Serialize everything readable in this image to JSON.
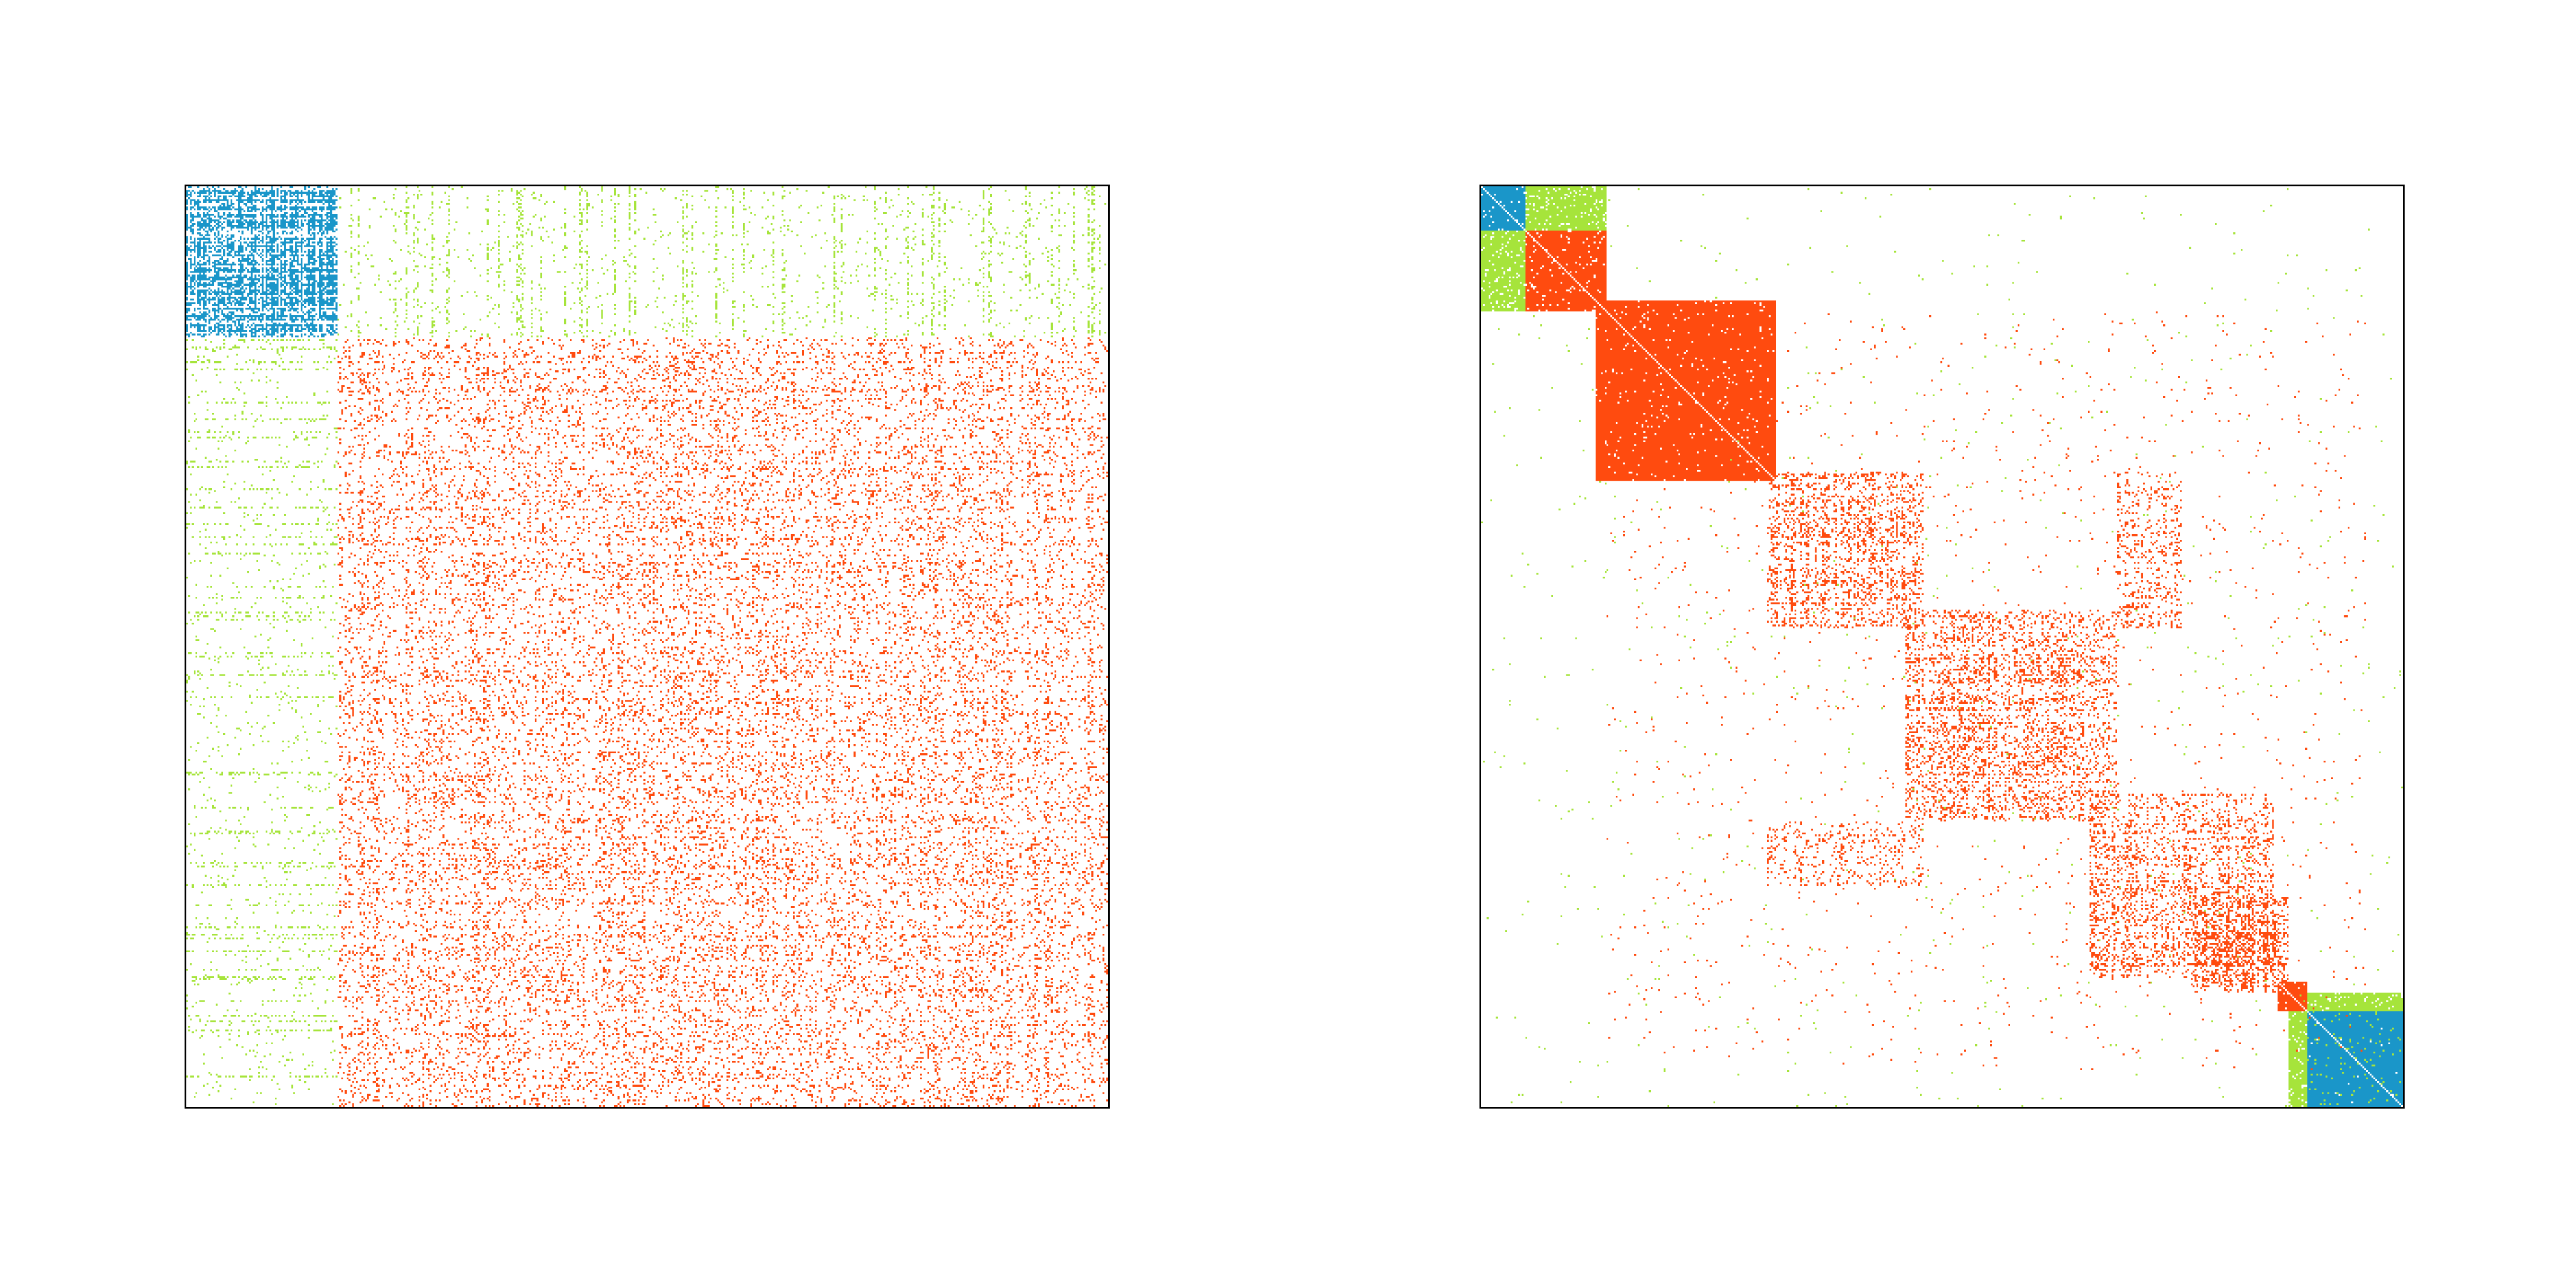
{
  "chart_data": [
    {
      "type": "heatmap",
      "panel": "left",
      "matrix_size": 500,
      "xlim": [
        0,
        500
      ],
      "ylim": [
        0,
        500
      ],
      "title": "",
      "xlabel": "",
      "ylabel": "",
      "grid": false,
      "legend": "none",
      "blocks": [
        {
          "group": "within-blue",
          "rows": [
            0,
            82
          ],
          "cols": [
            0,
            82
          ],
          "density": 0.6,
          "pattern": "lattice"
        },
        {
          "group": "cross-green",
          "rows": [
            0,
            82
          ],
          "cols": [
            82,
            500
          ],
          "density": 0.05,
          "pattern": "stripes"
        },
        {
          "group": "cross-green",
          "rows": [
            82,
            500
          ],
          "cols": [
            0,
            82
          ],
          "density": 0.05,
          "pattern": "stripes"
        },
        {
          "group": "within-red",
          "rows": [
            82,
            500
          ],
          "cols": [
            82,
            500
          ],
          "density": 0.13,
          "pattern": "lattice"
        }
      ]
    },
    {
      "type": "heatmap",
      "panel": "right",
      "matrix_size": 500,
      "xlim": [
        0,
        500
      ],
      "ylim": [
        0,
        500
      ],
      "title": "",
      "xlabel": "",
      "ylabel": "",
      "grid": false,
      "legend": "none",
      "blocks": [
        {
          "group": "within-blue",
          "rows": [
            0,
            24
          ],
          "cols": [
            0,
            24
          ],
          "density": 0.95,
          "pattern": "solid"
        },
        {
          "group": "cross-green",
          "rows": [
            0,
            24
          ],
          "cols": [
            24,
            68
          ],
          "density": 0.9,
          "pattern": "solid"
        },
        {
          "group": "cross-green",
          "rows": [
            24,
            68
          ],
          "cols": [
            0,
            24
          ],
          "density": 0.9,
          "pattern": "solid"
        },
        {
          "group": "within-red",
          "rows": [
            24,
            68
          ],
          "cols": [
            24,
            68
          ],
          "density": 0.95,
          "pattern": "solid"
        },
        {
          "group": "within-red",
          "rows": [
            62,
            160
          ],
          "cols": [
            62,
            160
          ],
          "density": 0.97,
          "pattern": "solid"
        },
        {
          "group": "within-red",
          "rows": [
            155,
            240
          ],
          "cols": [
            155,
            240
          ],
          "density": 0.25,
          "pattern": "lattice"
        },
        {
          "group": "within-red",
          "rows": [
            230,
            345
          ],
          "cols": [
            230,
            345
          ],
          "density": 0.22,
          "pattern": "lattice"
        },
        {
          "group": "within-red",
          "rows": [
            330,
            430
          ],
          "cols": [
            330,
            430
          ],
          "density": 0.2,
          "pattern": "lattice"
        },
        {
          "group": "within-red",
          "rows": [
            385,
            438
          ],
          "cols": [
            385,
            438
          ],
          "density": 0.35,
          "pattern": "lattice"
        },
        {
          "group": "within-red",
          "rows": [
            155,
            240
          ],
          "cols": [
            345,
            380
          ],
          "density": 0.15,
          "pattern": "lattice"
        },
        {
          "group": "within-red",
          "rows": [
            345,
            380
          ],
          "cols": [
            155,
            240
          ],
          "density": 0.15,
          "pattern": "lattice"
        },
        {
          "group": "within-red",
          "rows": [
            68,
            480
          ],
          "cols": [
            68,
            480
          ],
          "density": 0.008,
          "pattern": "scatter"
        },
        {
          "group": "cross-green",
          "rows": [
            0,
            500
          ],
          "cols": [
            0,
            500
          ],
          "density": 0.003,
          "pattern": "scatter"
        },
        {
          "group": "within-red",
          "rows": [
            432,
            448
          ],
          "cols": [
            432,
            448
          ],
          "density": 0.95,
          "pattern": "solid"
        },
        {
          "group": "cross-green",
          "rows": [
            438,
            500
          ],
          "cols": [
            438,
            500
          ],
          "density": 0.9,
          "pattern": "solid"
        },
        {
          "group": "within-blue",
          "rows": [
            448,
            500
          ],
          "cols": [
            448,
            500
          ],
          "density": 0.95,
          "pattern": "solid"
        }
      ]
    }
  ],
  "colors": {
    "within-blue": "#1a96c9",
    "within-red": "#ff4b0f",
    "cross-green": "#a6e43b",
    "background": "#ffffff",
    "frame": "#000000"
  }
}
